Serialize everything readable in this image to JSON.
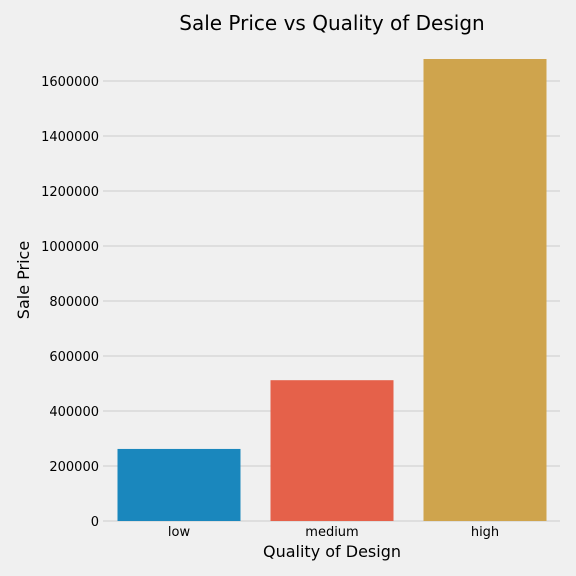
{
  "colors": {
    "background": "#f0f0f0",
    "grid": "#cbcbcb",
    "text": "#000000"
  },
  "chart_data": {
    "type": "bar",
    "title": "Sale Price vs Quality of Design",
    "xlabel": "Quality of Design",
    "ylabel": "Sale Price",
    "categories": [
      "low",
      "medium",
      "high"
    ],
    "values": [
      262000,
      512000,
      1680000
    ],
    "bar_colors": [
      "#1a87bd",
      "#e5614a",
      "#cfa44d"
    ],
    "ylim": [
      0,
      1680000
    ],
    "yticks": [
      0,
      200000,
      400000,
      600000,
      800000,
      1000000,
      1200000,
      1400000,
      1600000
    ],
    "grid": true,
    "legend": "none"
  }
}
